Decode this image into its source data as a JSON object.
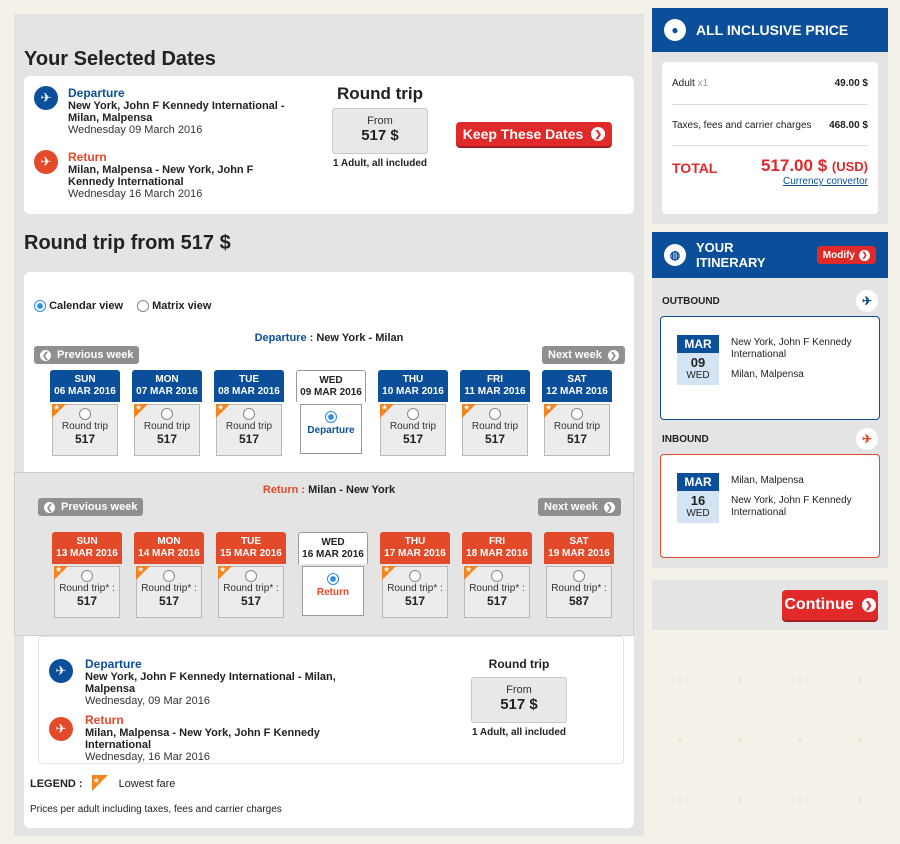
{
  "selected": {
    "title": "Your Selected Dates",
    "departure": {
      "label": "Departure",
      "route": "New York, John F Kennedy International - Milan, Malpensa",
      "date": "Wednesday 09 March 2016"
    },
    "return": {
      "label": "Return",
      "route": "Milan, Malpensa - New York, John F Kennedy International",
      "date": "Wednesday 16 March 2016"
    },
    "trip_type": "Round trip",
    "from_label": "From",
    "price": "517 $",
    "note": "1 Adult, all included",
    "keep_button": "Keep These Dates"
  },
  "calendar": {
    "title": "Round trip from 517 $",
    "view_calendar": "Calendar view",
    "view_matrix": "Matrix view",
    "departure_label": "Departure :",
    "departure_route": "New York - Milan",
    "return_label": "Return :",
    "return_route": "Milan - New York",
    "prev_week": "Previous week",
    "next_week": "Next week",
    "departure_days": [
      {
        "dow": "SUN",
        "date": "06 MAR 2016",
        "label": "Round trip",
        "price": "517",
        "lowest": true
      },
      {
        "dow": "MON",
        "date": "07 MAR 2016",
        "label": "Round trip",
        "price": "517",
        "lowest": true
      },
      {
        "dow": "TUE",
        "date": "08 MAR 2016",
        "label": "Round trip",
        "price": "517",
        "lowest": true
      },
      {
        "dow": "WED",
        "date": "09 MAR 2016",
        "label": "Departure",
        "selected": true
      },
      {
        "dow": "THU",
        "date": "10 MAR 2016",
        "label": "Round trip",
        "price": "517",
        "lowest": true
      },
      {
        "dow": "FRI",
        "date": "11 MAR 2016",
        "label": "Round trip",
        "price": "517",
        "lowest": true
      },
      {
        "dow": "SAT",
        "date": "12 MAR 2016",
        "label": "Round trip",
        "price": "517",
        "lowest": true
      }
    ],
    "return_days": [
      {
        "dow": "SUN",
        "date": "13 MAR 2016",
        "label": "Round trip* :",
        "price": "517",
        "lowest": true
      },
      {
        "dow": "MON",
        "date": "14 MAR 2016",
        "label": "Round trip* :",
        "price": "517",
        "lowest": true
      },
      {
        "dow": "TUE",
        "date": "15 MAR 2016",
        "label": "Round trip* :",
        "price": "517",
        "lowest": true
      },
      {
        "dow": "WED",
        "date": "16 MAR 2016",
        "label": "Return",
        "selected": true
      },
      {
        "dow": "THU",
        "date": "17 MAR 2016",
        "label": "Round trip* :",
        "price": "517",
        "lowest": true
      },
      {
        "dow": "FRI",
        "date": "18 MAR 2016",
        "label": "Round trip* :",
        "price": "517",
        "lowest": true
      },
      {
        "dow": "SAT",
        "date": "19 MAR 2016",
        "label": "Round trip* :",
        "price": "587",
        "lowest": false
      }
    ],
    "summary": {
      "departure_label": "Departure",
      "departure_route": "New York, John F Kennedy International - Milan, Malpensa",
      "departure_date": "Wednesday, 09 Mar 2016",
      "return_label": "Return",
      "return_route": "Milan, Malpensa - New York, John F Kennedy International",
      "return_date": "Wednesday, 16 Mar 2016",
      "trip_type": "Round trip",
      "from_label": "From",
      "price": "517 $",
      "note": "1 Adult, all included"
    },
    "legend_label": "LEGEND :",
    "legend_text": "Lowest fare",
    "footnote": "Prices per adult including taxes, fees and carrier charges"
  },
  "price_panel": {
    "title": "ALL INCLUSIVE PRICE",
    "adult_label": "Adult",
    "adult_qty": "x1",
    "adult_value": "49.00 $",
    "taxes_label": "Taxes, fees and carrier charges",
    "taxes_value": "468.00 $",
    "total_label": "TOTAL",
    "total_value": "517.00 $",
    "total_currency": "(USD)",
    "converter": "Currency convertor"
  },
  "itinerary": {
    "title_line1": "YOUR",
    "title_line2": "ITINERARY",
    "modify": "Modify",
    "outbound_label": "OUTBOUND",
    "outbound": {
      "month": "MAR",
      "day": "09",
      "dow": "WED",
      "from": "New York, John F Kennedy International",
      "to": "Milan, Malpensa"
    },
    "inbound_label": "INBOUND",
    "inbound": {
      "month": "MAR",
      "day": "16",
      "dow": "WED",
      "from": "Milan, Malpensa",
      "to": "New York, John F Kennedy International"
    }
  },
  "continue_button": "Continue",
  "colors": {
    "brand_blue": "#0b4f9a",
    "brand_red": "#e24a2a",
    "lowest_fare": "#f5841f"
  }
}
